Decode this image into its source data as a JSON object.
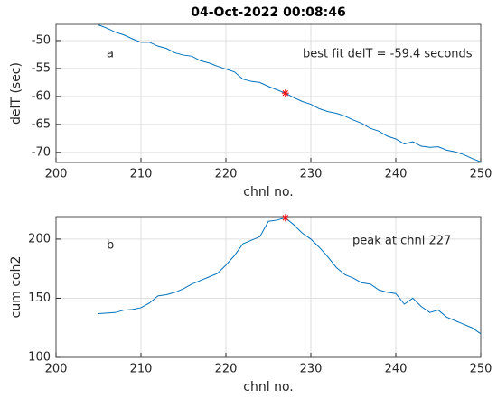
{
  "chart_data": [
    {
      "type": "line",
      "title": "04-Oct-2022 00:08:46",
      "xlabel": "chnl no.",
      "ylabel": "delT (sec)",
      "x": [
        205,
        206,
        207,
        208,
        209,
        210,
        211,
        212,
        213,
        214,
        215,
        216,
        217,
        218,
        219,
        220,
        221,
        222,
        223,
        224,
        225,
        226,
        227,
        228,
        229,
        230,
        231,
        232,
        233,
        234,
        235,
        236,
        237,
        238,
        239,
        240,
        241,
        242,
        243,
        244,
        245,
        246,
        247,
        248,
        249,
        250
      ],
      "series": [
        {
          "color": "#0072bd",
          "values": [
            -47.2,
            -47.8,
            -48.5,
            -49.0,
            -49.7,
            -50.3,
            -50.3,
            -51.0,
            -51.4,
            -52.2,
            -52.6,
            -52.8,
            -53.6,
            -54.0,
            -54.6,
            -55.1,
            -55.6,
            -56.9,
            -57.3,
            -57.5,
            -58.2,
            -58.8,
            -59.4,
            -60.2,
            -60.9,
            -61.4,
            -62.2,
            -62.7,
            -63.0,
            -63.5,
            -64.2,
            -64.8,
            -65.7,
            -66.2,
            -67.1,
            -67.6,
            -68.5,
            -68.1,
            -68.9,
            -69.1,
            -69.0,
            -69.6,
            -69.9,
            -70.4,
            -71.1,
            -71.7
          ]
        }
      ],
      "marker": {
        "x": 227,
        "y": -59.4,
        "color": "#ff0000"
      },
      "annotations": [
        "a",
        "best fit delT = -59.4 seconds"
      ],
      "xlim": [
        200,
        250
      ],
      "xticks": [
        200,
        210,
        220,
        230,
        240,
        250
      ],
      "ylim": [
        -71.8,
        -47.1
      ],
      "yticks": [
        -70,
        -65,
        -60,
        -55,
        -50
      ],
      "grid": true
    },
    {
      "type": "line",
      "xlabel": "chnl no.",
      "ylabel": "cum coh2",
      "x": [
        205,
        206,
        207,
        208,
        209,
        210,
        211,
        212,
        213,
        214,
        215,
        216,
        217,
        218,
        219,
        220,
        221,
        222,
        223,
        224,
        225,
        226,
        227,
        228,
        229,
        230,
        231,
        232,
        233,
        234,
        235,
        236,
        237,
        238,
        239,
        240,
        241,
        242,
        243,
        244,
        245,
        246,
        247,
        248,
        249,
        250
      ],
      "series": [
        {
          "color": "#0072bd",
          "values": [
            137,
            137.5,
            138,
            140,
            140.5,
            142,
            146,
            152,
            153,
            155,
            158,
            162,
            165,
            168,
            171,
            178,
            186,
            196,
            199,
            202,
            215,
            216,
            218,
            212,
            205,
            200,
            193,
            185,
            176,
            170,
            167,
            163,
            162,
            157,
            155,
            154,
            145,
            150,
            143,
            138,
            140,
            134,
            131,
            128,
            125,
            120
          ]
        }
      ],
      "marker": {
        "x": 227,
        "y": 218,
        "color": "#ff0000"
      },
      "annotations": [
        "b",
        "peak at chnl 227"
      ],
      "xlim": [
        200,
        250
      ],
      "xticks": [
        200,
        210,
        220,
        230,
        240,
        250
      ],
      "ylim": [
        100,
        219
      ],
      "yticks": [
        100,
        150,
        200
      ],
      "grid": true
    }
  ]
}
